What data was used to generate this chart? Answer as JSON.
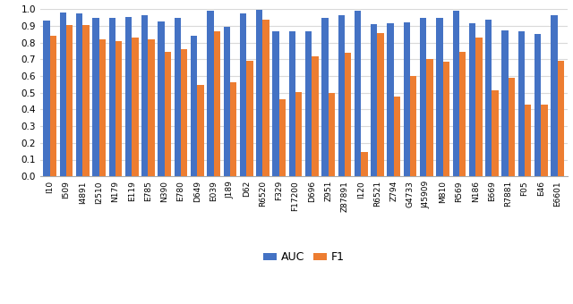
{
  "categories": [
    "I10",
    "I509",
    "I4891",
    "I2510",
    "N179",
    "E119",
    "E785",
    "N390",
    "E780",
    "D649",
    "E039",
    "J189",
    "D62",
    "R6520",
    "F329",
    "F17200",
    "D696",
    "Z951",
    "Z87891",
    "I120",
    "R6521",
    "Z794",
    "G4733",
    "J45909",
    "M810",
    "R569",
    "N186",
    "E669",
    "R7881",
    "F05",
    "E46",
    "E6601"
  ],
  "auc": [
    0.93,
    0.98,
    0.975,
    0.945,
    0.95,
    0.955,
    0.965,
    0.925,
    0.95,
    0.84,
    0.99,
    0.895,
    0.975,
    0.995,
    0.87,
    0.865,
    0.87,
    0.95,
    0.965,
    0.99,
    0.91,
    0.915,
    0.92,
    0.95,
    0.945,
    0.99,
    0.915,
    0.935,
    0.875,
    0.865,
    0.85,
    0.965
  ],
  "f1": [
    0.84,
    0.905,
    0.905,
    0.82,
    0.81,
    0.83,
    0.82,
    0.745,
    0.76,
    0.545,
    0.87,
    0.56,
    0.69,
    0.935,
    0.46,
    0.505,
    0.715,
    0.5,
    0.74,
    0.145,
    0.855,
    0.475,
    0.6,
    0.7,
    0.685,
    0.745,
    0.83,
    0.515,
    0.59,
    0.43,
    0.43,
    0.69
  ],
  "auc_color": "#4472c4",
  "f1_color": "#ed7d31",
  "ylim": [
    0,
    1
  ],
  "yticks": [
    0,
    0.1,
    0.2,
    0.3,
    0.4,
    0.5,
    0.6,
    0.7,
    0.8,
    0.9,
    1
  ],
  "legend_labels": [
    "AUC",
    "F1"
  ],
  "background_color": "#ffffff",
  "grid_color": "#d9d9d9"
}
